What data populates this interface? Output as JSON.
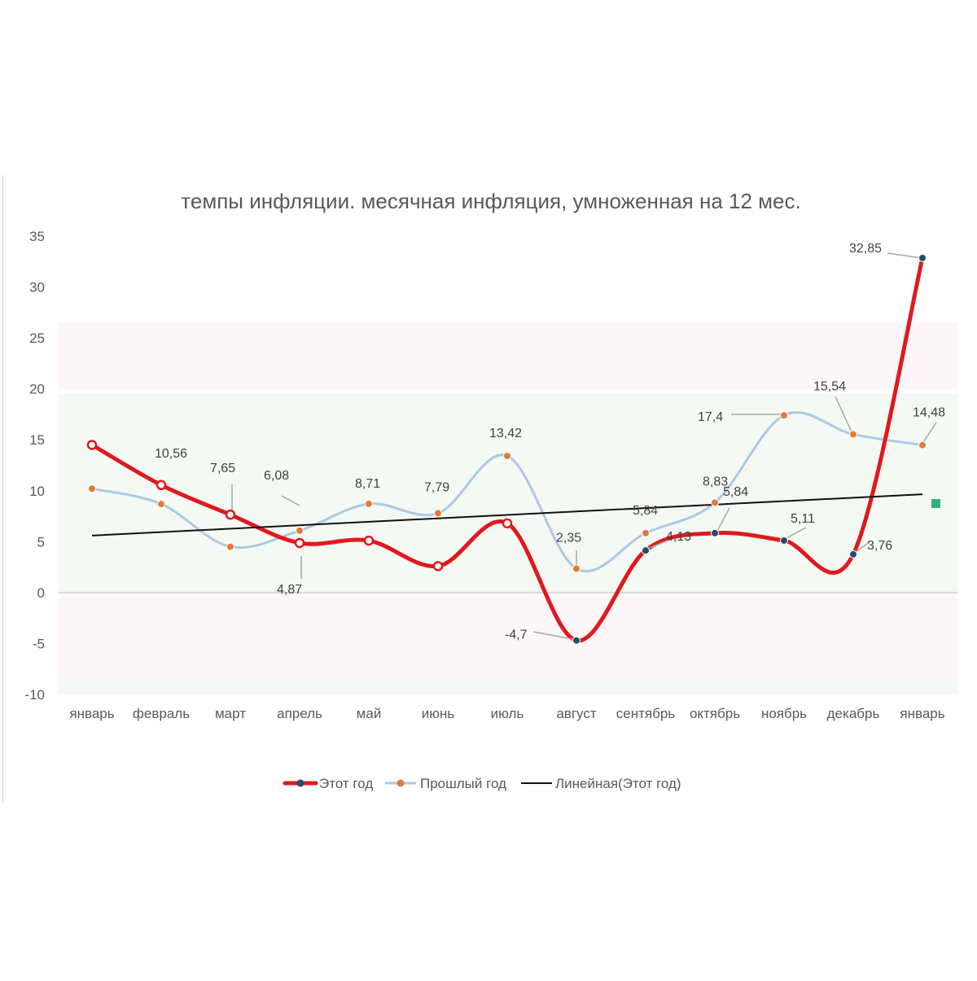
{
  "chart_data": {
    "type": "line",
    "title": "темпы инфляции. месячная инфляция, умноженная на 12 мес.",
    "categories": [
      "январь",
      "февраль",
      "март",
      "апрель",
      "май",
      "июнь",
      "июль",
      "август",
      "сентябрь",
      "октябрь",
      "ноябрь",
      "декабрь",
      "январь"
    ],
    "ylim": [
      -10,
      35
    ],
    "yticks": [
      35,
      30,
      25,
      20,
      15,
      10,
      5,
      0,
      -5,
      -10
    ],
    "grid": false,
    "bands": [
      {
        "from": 20,
        "to": 26.5,
        "color": "#fcf6f8"
      },
      {
        "from": 0,
        "to": 19.5,
        "color": "#f5f9f4"
      },
      {
        "from": -8.3,
        "to": 0,
        "color": "#fcf6f8"
      },
      {
        "from": -10,
        "to": -8.3,
        "color": "#f5f9f4"
      }
    ],
    "series": [
      {
        "name": "Этот год",
        "color": "#e0191e",
        "marker_color": "#1f4e6f",
        "values": [
          14.5,
          10.56,
          7.65,
          4.87,
          5.1,
          2.6,
          6.8,
          -4.7,
          4.13,
          5.84,
          5.11,
          3.76,
          32.85
        ],
        "labels": [
          "",
          "10,56",
          "7,65",
          "4,87",
          "",
          "",
          "",
          "-4,7",
          "4,13",
          "5,84",
          "5,11",
          "3,76",
          "32,85"
        ]
      },
      {
        "name": "Прошлый год",
        "color": "#a9c9e6",
        "marker_color": "#e07b39",
        "values": [
          10.2,
          8.7,
          4.5,
          6.08,
          8.71,
          7.79,
          13.42,
          2.35,
          5.84,
          8.83,
          17.4,
          15.54,
          14.48
        ],
        "labels": [
          "",
          "",
          "",
          "6,08",
          "8,71",
          "7,79",
          "13,42",
          "2,35",
          "5,84",
          "8,83",
          "17,4",
          "15,54",
          "14,48"
        ]
      }
    ],
    "trendline": {
      "name": "Линейная(Этот год)",
      "color": "#111111",
      "start": 5.6,
      "end": 9.65
    },
    "extra_marker": {
      "value": 8.7,
      "color": "#2eb37a"
    },
    "legend": "bottom"
  }
}
